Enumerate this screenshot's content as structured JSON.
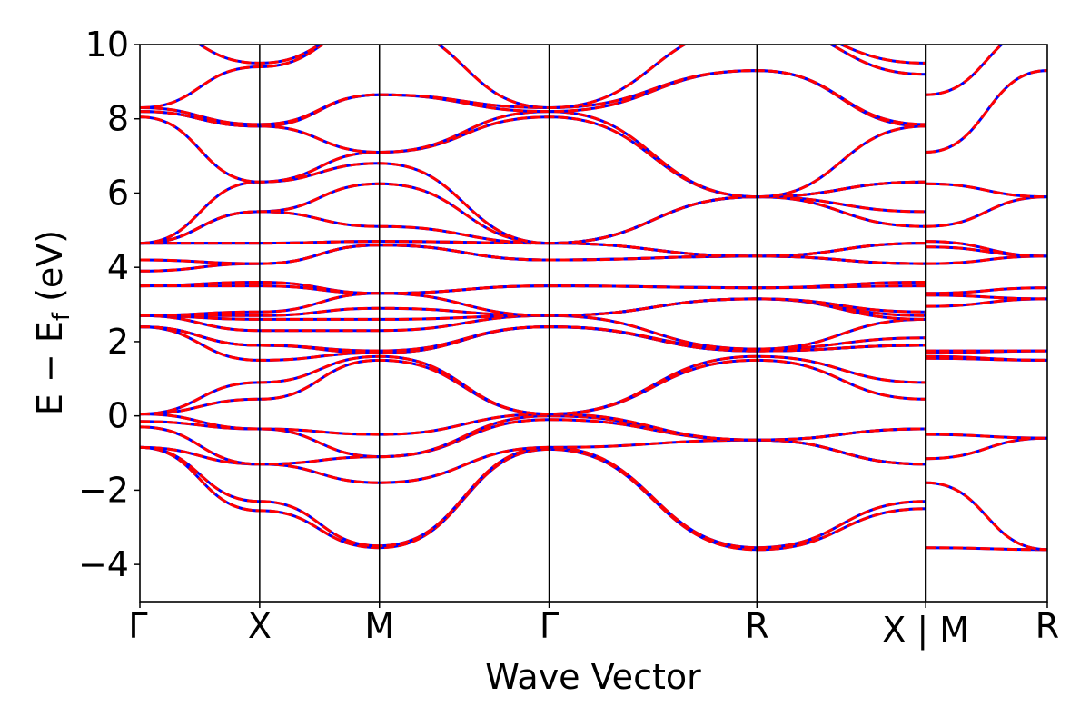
{
  "chart_data": {
    "type": "line",
    "title": "",
    "xlabel": "Wave Vector",
    "ylabel_main": "E − E",
    "ylabel_sub": "f",
    "ylabel_unit": " (eV)",
    "ylim": [
      -5,
      10
    ],
    "yticks": [
      {
        "value": 10,
        "label": "10"
      },
      {
        "value": 8,
        "label": "8"
      },
      {
        "value": 6,
        "label": "6"
      },
      {
        "value": 4,
        "label": "4"
      },
      {
        "value": 2,
        "label": "2"
      },
      {
        "value": 0,
        "label": "0"
      },
      {
        "value": -2,
        "label": "−2"
      },
      {
        "value": -4,
        "label": "−4"
      }
    ],
    "xlim": [
      0,
      1
    ],
    "kpoints": [
      {
        "x": 0.0,
        "label": "Γ"
      },
      {
        "x": 0.132,
        "label": "X"
      },
      {
        "x": 0.264,
        "label": "M"
      },
      {
        "x": 0.451,
        "label": "Γ"
      },
      {
        "x": 0.68,
        "label": "R"
      },
      {
        "x": 0.866,
        "label": "X | M"
      },
      {
        "x": 1.0,
        "label": "R"
      }
    ],
    "line_colors": {
      "band_primary": "#ff0000",
      "band_overlay": "#0000ff"
    },
    "line_style": "blue solid with red dashed overlay",
    "grid": false,
    "legend": "none",
    "segments": [
      {
        "x_start": 0.0,
        "x_end": 0.866,
        "samples": 6,
        "bands": [
          [
            -0.85,
            -2.55,
            -3.55,
            -0.9,
            -3.6,
            -2.5
          ],
          [
            -0.85,
            -2.3,
            -3.5,
            -0.85,
            -3.55,
            -2.3
          ],
          [
            -0.85,
            -1.3,
            -1.8,
            -0.85,
            -0.65,
            -1.3
          ],
          [
            -0.3,
            -1.3,
            -1.1,
            -0.1,
            -0.65,
            -1.3
          ],
          [
            -0.15,
            -0.35,
            -1.1,
            0.0,
            -0.65,
            -0.35
          ],
          [
            0.05,
            -0.35,
            -0.5,
            0.05,
            -0.65,
            -0.35
          ],
          [
            0.05,
            0.45,
            1.5,
            0.05,
            1.5,
            0.45
          ],
          [
            0.05,
            0.9,
            1.6,
            0.05,
            1.6,
            0.9
          ],
          [
            2.4,
            1.5,
            1.7,
            2.4,
            1.75,
            1.9
          ],
          [
            2.4,
            1.9,
            1.7,
            2.4,
            1.75,
            1.9
          ],
          [
            2.4,
            1.9,
            1.75,
            2.4,
            1.8,
            2.1
          ],
          [
            2.7,
            2.3,
            2.3,
            2.7,
            1.8,
            2.6
          ],
          [
            2.7,
            2.6,
            2.6,
            2.7,
            3.15,
            2.6
          ],
          [
            2.7,
            2.7,
            2.9,
            2.7,
            3.15,
            2.7
          ],
          [
            2.7,
            2.8,
            3.3,
            2.7,
            3.15,
            2.8
          ],
          [
            3.5,
            3.5,
            3.3,
            3.5,
            3.45,
            3.5
          ],
          [
            3.5,
            3.6,
            3.3,
            3.5,
            3.45,
            3.6
          ],
          [
            3.9,
            4.1,
            4.6,
            4.2,
            4.3,
            4.1
          ],
          [
            4.2,
            4.1,
            4.6,
            4.2,
            4.3,
            4.1
          ],
          [
            4.65,
            4.65,
            4.7,
            4.65,
            4.3,
            4.65
          ],
          [
            4.65,
            4.65,
            4.7,
            4.65,
            4.3,
            4.65
          ],
          [
            4.65,
            5.5,
            5.1,
            4.65,
            5.9,
            5.5
          ],
          [
            4.65,
            5.5,
            6.25,
            4.65,
            5.9,
            5.1
          ],
          [
            4.65,
            6.3,
            6.8,
            4.65,
            5.9,
            6.3
          ],
          [
            8.05,
            6.3,
            7.1,
            8.05,
            5.9,
            6.3
          ],
          [
            8.2,
            7.8,
            7.1,
            8.2,
            5.9,
            7.8
          ],
          [
            8.2,
            7.8,
            8.65,
            8.2,
            9.3,
            7.8
          ],
          [
            8.3,
            7.85,
            8.65,
            8.3,
            9.3,
            7.85
          ],
          [
            8.3,
            9.4,
            10.5,
            8.3,
            10.5,
            9.2
          ],
          [
            10.5,
            9.5,
            10.5,
            10.5,
            10.5,
            9.5
          ]
        ]
      },
      {
        "x_start": 0.866,
        "x_end": 1.0,
        "samples": 2,
        "bands": [
          [
            -3.55,
            -3.6
          ],
          [
            -1.8,
            -3.6
          ],
          [
            -1.15,
            -0.6
          ],
          [
            -0.5,
            -0.6
          ],
          [
            1.55,
            1.5
          ],
          [
            1.6,
            1.5
          ],
          [
            1.7,
            1.75
          ],
          [
            1.75,
            1.75
          ],
          [
            2.95,
            3.15
          ],
          [
            3.25,
            3.15
          ],
          [
            3.3,
            3.45
          ],
          [
            4.1,
            4.3
          ],
          [
            4.55,
            4.3
          ],
          [
            4.7,
            4.3
          ],
          [
            5.1,
            5.9
          ],
          [
            6.25,
            5.9
          ],
          [
            7.1,
            9.3
          ],
          [
            8.65,
            10.5
          ]
        ]
      }
    ]
  }
}
